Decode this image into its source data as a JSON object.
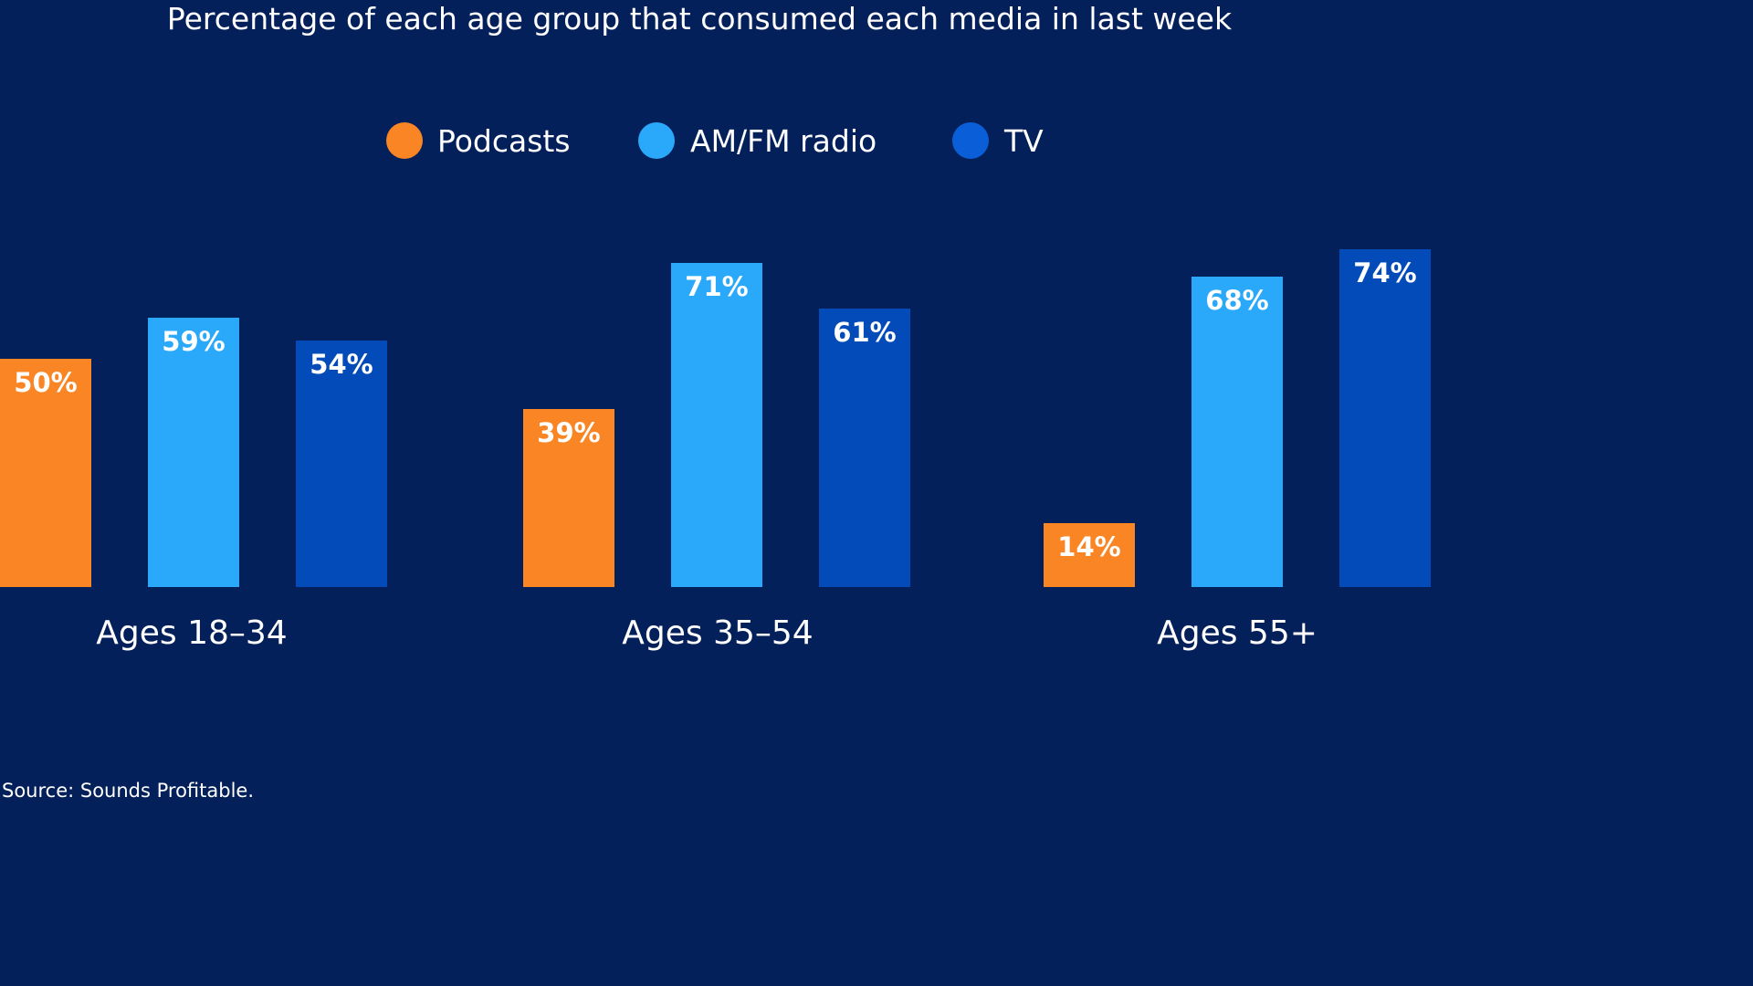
{
  "background": "#04205A",
  "chart_data": {
    "type": "bar",
    "title": "Percentage of each age group that consumed each media in last week",
    "xlabel": "",
    "ylabel": "",
    "ylim": [
      0,
      100
    ],
    "grid": false,
    "legend_position": "top-center",
    "categories": [
      "Ages 18–34",
      "Ages 35–54",
      "Ages 55+"
    ],
    "series": [
      {
        "name": "Podcasts",
        "color": "#F98524",
        "values": [
          50,
          39,
          14
        ],
        "labels": [
          "50%",
          "39%",
          "14%"
        ]
      },
      {
        "name": "AM/FM radio",
        "color": "#2AA8FA",
        "values": [
          59,
          71,
          68
        ],
        "labels": [
          "59%",
          "71%",
          "68%"
        ]
      },
      {
        "name": "TV",
        "color": "#034BB8",
        "values": [
          54,
          61,
          74
        ],
        "labels": [
          "54%",
          "61%",
          "74%"
        ]
      }
    ],
    "legend_marker_colors": [
      "#F98524",
      "#2AA8FA",
      "#0A5FD8"
    ],
    "source": "Source: Sounds Profitable."
  }
}
